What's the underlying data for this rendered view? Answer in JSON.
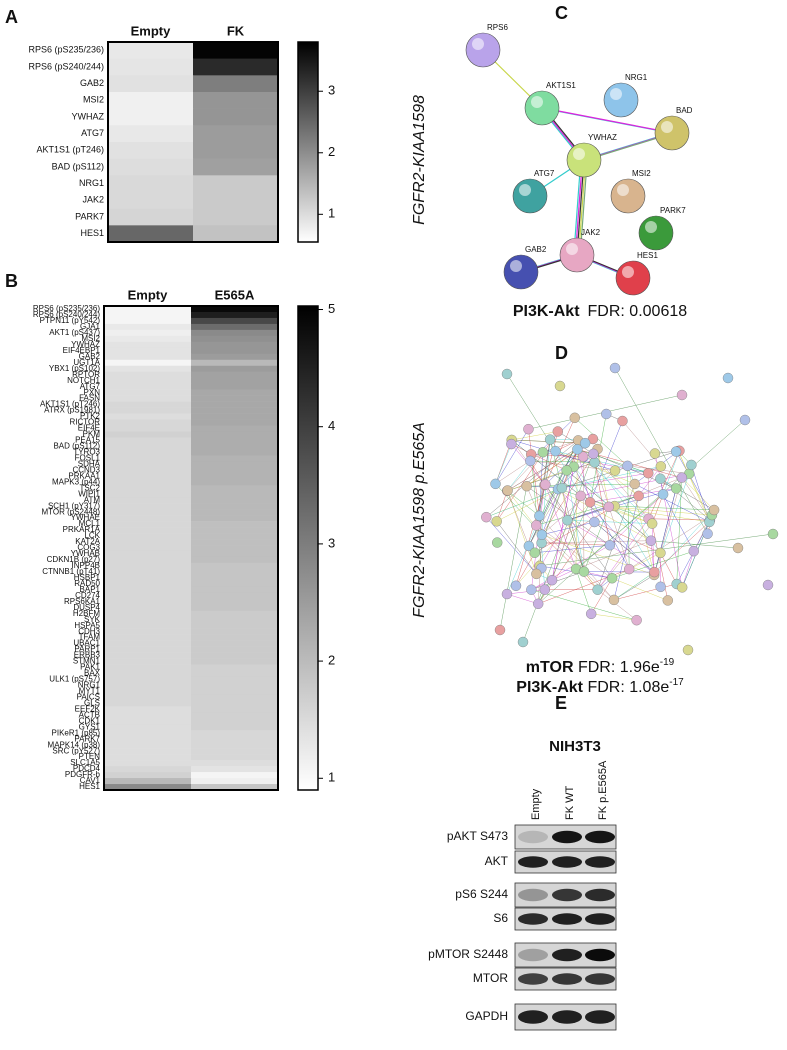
{
  "panel_a": {
    "letter": "A",
    "columns": [
      "Empty",
      "FK"
    ],
    "rows": [
      "RPS6 (pS235/236)",
      "RPS6 (pS240/244)",
      "GAB2",
      "MSI2",
      "YWHAZ",
      "ATG7",
      "AKT1S1 (pT246)",
      "BAD (pS112)",
      "NRG1",
      "JAK2",
      "PARK7",
      "HES1"
    ],
    "values": [
      [
        0.8,
        3.8
      ],
      [
        0.85,
        3.3
      ],
      [
        0.9,
        2.2
      ],
      [
        0.7,
        1.9
      ],
      [
        0.7,
        1.9
      ],
      [
        0.8,
        1.8
      ],
      [
        0.9,
        1.8
      ],
      [
        0.95,
        1.75
      ],
      [
        1.0,
        1.2
      ],
      [
        1.0,
        1.2
      ],
      [
        1.05,
        1.2
      ],
      [
        2.5,
        1.3
      ]
    ],
    "colorbar": {
      "lim": [
        0.55,
        3.8
      ],
      "ticks": [
        1,
        2,
        3
      ]
    }
  },
  "panel_b": {
    "letter": "B",
    "columns": [
      "Empty",
      "E565A"
    ],
    "rows": [
      "RPS6 (pS235/236)",
      "RPS6 (pS240/244)",
      "PTPN11 (pY542)",
      "GJA1",
      "AKT1 (pS437)",
      "MSI2",
      "YWHAZ",
      "EIF4EBP1",
      "GAB2",
      "UGT1A",
      "YBX1 (pS102)",
      "RPTOR",
      "NOTCH1",
      "ATG7",
      "PXN",
      "FASN",
      "AKT1S1 (pT246)",
      "ATRX (pS1981)",
      "PTK2",
      "RICTOR",
      "EIF4E",
      "PKM",
      "PEA15",
      "BAD (pS112)",
      "TYRO3",
      "FOSL1",
      "SDHA",
      "CCND3",
      "PRKAA1",
      "MAPK3 (p44)",
      "TSC2",
      "WIPI1",
      "ATM",
      "SCH1 (pY317)",
      "MTOR (pS2448)",
      "YWHAE",
      "MCL1",
      "PRKAR1A",
      "LCK",
      "KAT2A",
      "COG3",
      "YWHAB",
      "CDKN1B (p27)",
      "INPP4B",
      "CTNNB1 (pT41)",
      "HSBP1",
      "RAD50",
      "BAP1",
      "CD274",
      "RPS6KA1",
      "DUSP4",
      "H2BFM",
      "SYK",
      "HSPA5",
      "CDH3",
      "TFAM",
      "UBAC1",
      "PARP1",
      "ERBB3",
      "STMN1",
      "PAK1",
      "BAX",
      "ULK1 (pS757)",
      "NRG1",
      "MYT1",
      "PAICS",
      "GLS",
      "EEF2K",
      "ACTB",
      "CDK1",
      "GYS1",
      "PIKeR1 (p85)",
      "PARK7",
      "MAPK14 (p38)",
      "SRC (pY527)",
      "PTEN",
      "SLC1A5",
      "PDCD4",
      "PDGFR-b",
      "CAV1",
      "HES1"
    ],
    "values": [
      [
        1.0,
        4.95
      ],
      [
        1.0,
        4.6
      ],
      [
        1.0,
        3.9
      ],
      [
        1.2,
        3.3
      ],
      [
        1.1,
        2.8
      ],
      [
        1.2,
        2.7
      ],
      [
        1.3,
        2.6
      ],
      [
        1.3,
        2.6
      ],
      [
        1.3,
        2.5
      ],
      [
        1.0,
        2.0
      ],
      [
        1.3,
        2.5
      ],
      [
        1.4,
        2.4
      ],
      [
        1.4,
        2.4
      ],
      [
        1.4,
        2.4
      ],
      [
        1.4,
        2.3
      ],
      [
        1.4,
        2.3
      ],
      [
        1.5,
        2.3
      ],
      [
        1.5,
        2.3
      ],
      [
        1.4,
        2.3
      ],
      [
        1.5,
        2.3
      ],
      [
        1.5,
        2.2
      ],
      [
        1.6,
        2.2
      ],
      [
        1.5,
        2.2
      ],
      [
        1.5,
        2.2
      ],
      [
        1.5,
        2.2
      ],
      [
        1.5,
        2.1
      ],
      [
        1.5,
        2.1
      ],
      [
        1.5,
        2.1
      ],
      [
        1.5,
        2.1
      ],
      [
        1.5,
        2.1
      ],
      [
        1.5,
        2.0
      ],
      [
        1.5,
        2.0
      ],
      [
        1.5,
        2.0
      ],
      [
        1.5,
        2.0
      ],
      [
        1.5,
        2.0
      ],
      [
        1.5,
        2.0
      ],
      [
        1.5,
        1.9
      ],
      [
        1.5,
        1.9
      ],
      [
        1.5,
        1.9
      ],
      [
        1.5,
        1.9
      ],
      [
        1.5,
        1.9
      ],
      [
        1.5,
        1.9
      ],
      [
        1.5,
        1.9
      ],
      [
        1.5,
        1.8
      ],
      [
        1.5,
        1.8
      ],
      [
        1.5,
        1.8
      ],
      [
        1.5,
        1.8
      ],
      [
        1.5,
        1.8
      ],
      [
        1.5,
        1.8
      ],
      [
        1.5,
        1.8
      ],
      [
        1.5,
        1.8
      ],
      [
        1.5,
        1.7
      ],
      [
        1.5,
        1.7
      ],
      [
        1.5,
        1.7
      ],
      [
        1.5,
        1.7
      ],
      [
        1.5,
        1.7
      ],
      [
        1.5,
        1.7
      ],
      [
        1.5,
        1.7
      ],
      [
        1.5,
        1.7
      ],
      [
        1.5,
        1.7
      ],
      [
        1.5,
        1.6
      ],
      [
        1.5,
        1.6
      ],
      [
        1.5,
        1.6
      ],
      [
        1.5,
        1.6
      ],
      [
        1.5,
        1.6
      ],
      [
        1.5,
        1.6
      ],
      [
        1.5,
        1.6
      ],
      [
        1.4,
        1.6
      ],
      [
        1.4,
        1.6
      ],
      [
        1.4,
        1.6
      ],
      [
        1.4,
        1.6
      ],
      [
        1.4,
        1.5
      ],
      [
        1.4,
        1.5
      ],
      [
        1.4,
        1.5
      ],
      [
        1.4,
        1.5
      ],
      [
        1.4,
        1.5
      ],
      [
        1.4,
        1.4
      ],
      [
        1.5,
        1.3
      ],
      [
        1.6,
        1.0
      ],
      [
        2.0,
        1.1
      ],
      [
        2.8,
        1.8
      ]
    ],
    "colorbar": {
      "lim": [
        0.9,
        5.03
      ],
      "ticks": [
        1,
        2,
        3,
        4,
        5
      ]
    }
  },
  "panel_c": {
    "letter": "C",
    "side_label": "FGFR2-KIAA1598",
    "nodes": [
      "RPS6",
      "AKT1S1",
      "NRG1",
      "BAD",
      "YWHAZ",
      "ATG7",
      "MSI2",
      "JAK2",
      "PARK7",
      "GAB2",
      "HES1"
    ],
    "pathway": "PI3K-Akt",
    "fdr": "FDR: 0.00618"
  },
  "panel_d": {
    "letter": "D",
    "side_label": "FGFR2-KIAA1598 p.E565A",
    "enrichment": [
      {
        "pathway": "mTOR",
        "fdr": "FDR: 1.96e",
        "exponent": "-19"
      },
      {
        "pathway": "PI3K-Akt",
        "fdr": "FDR: 1.08e",
        "exponent": "-17"
      }
    ]
  },
  "panel_e": {
    "letter": "E",
    "title": "NIH3T3",
    "lanes": [
      "Empty",
      "FK WT",
      "FK p.E565A"
    ],
    "blots": [
      "pAKT S473",
      "AKT",
      "pS6 S244",
      "S6",
      "pMTOR S2448",
      "MTOR",
      "GAPDH"
    ]
  }
}
